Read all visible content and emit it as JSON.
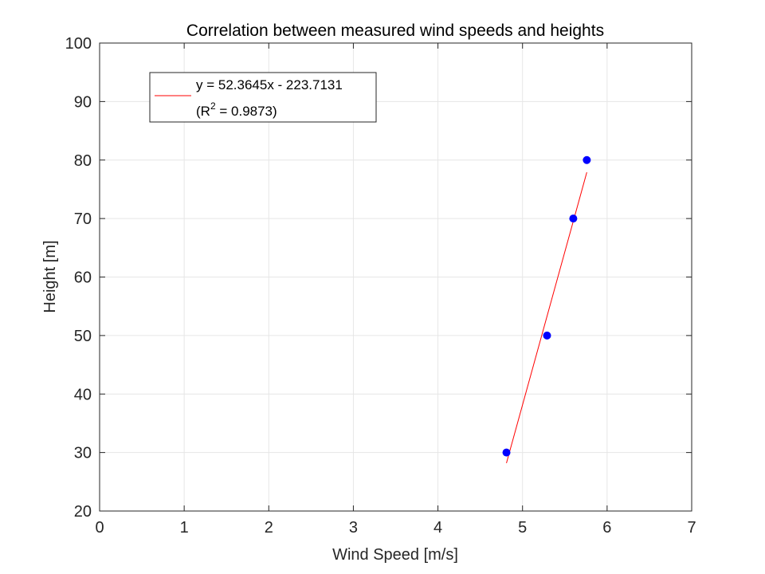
{
  "chart_data": {
    "type": "scatter",
    "title": "Correlation between measured wind speeds and heights",
    "xlabel": "Wind Speed [m/s]",
    "ylabel": "Height [m]",
    "xlim": [
      0,
      7
    ],
    "ylim": [
      20,
      100
    ],
    "xticks": [
      "0",
      "1",
      "2",
      "3",
      "4",
      "5",
      "6",
      "7"
    ],
    "yticks": [
      "20",
      "30",
      "40",
      "50",
      "60",
      "70",
      "80",
      "90",
      "100"
    ],
    "grid": true,
    "series": [
      {
        "type": "scatter",
        "color": "#0000ff",
        "x": [
          4.81,
          5.29,
          5.6,
          5.76
        ],
        "y": [
          30,
          50,
          70,
          80
        ]
      },
      {
        "type": "line",
        "color": "#ff0000",
        "x": [
          4.81,
          5.76
        ],
        "y": [
          28.2,
          77.9
        ]
      }
    ],
    "legend": {
      "location": "top-left",
      "line1": "y = 52.3645x - 223.7131",
      "line2_prefix": "(R",
      "line2_sup": "2",
      "line2_suffix": " = 0.9873)"
    }
  }
}
